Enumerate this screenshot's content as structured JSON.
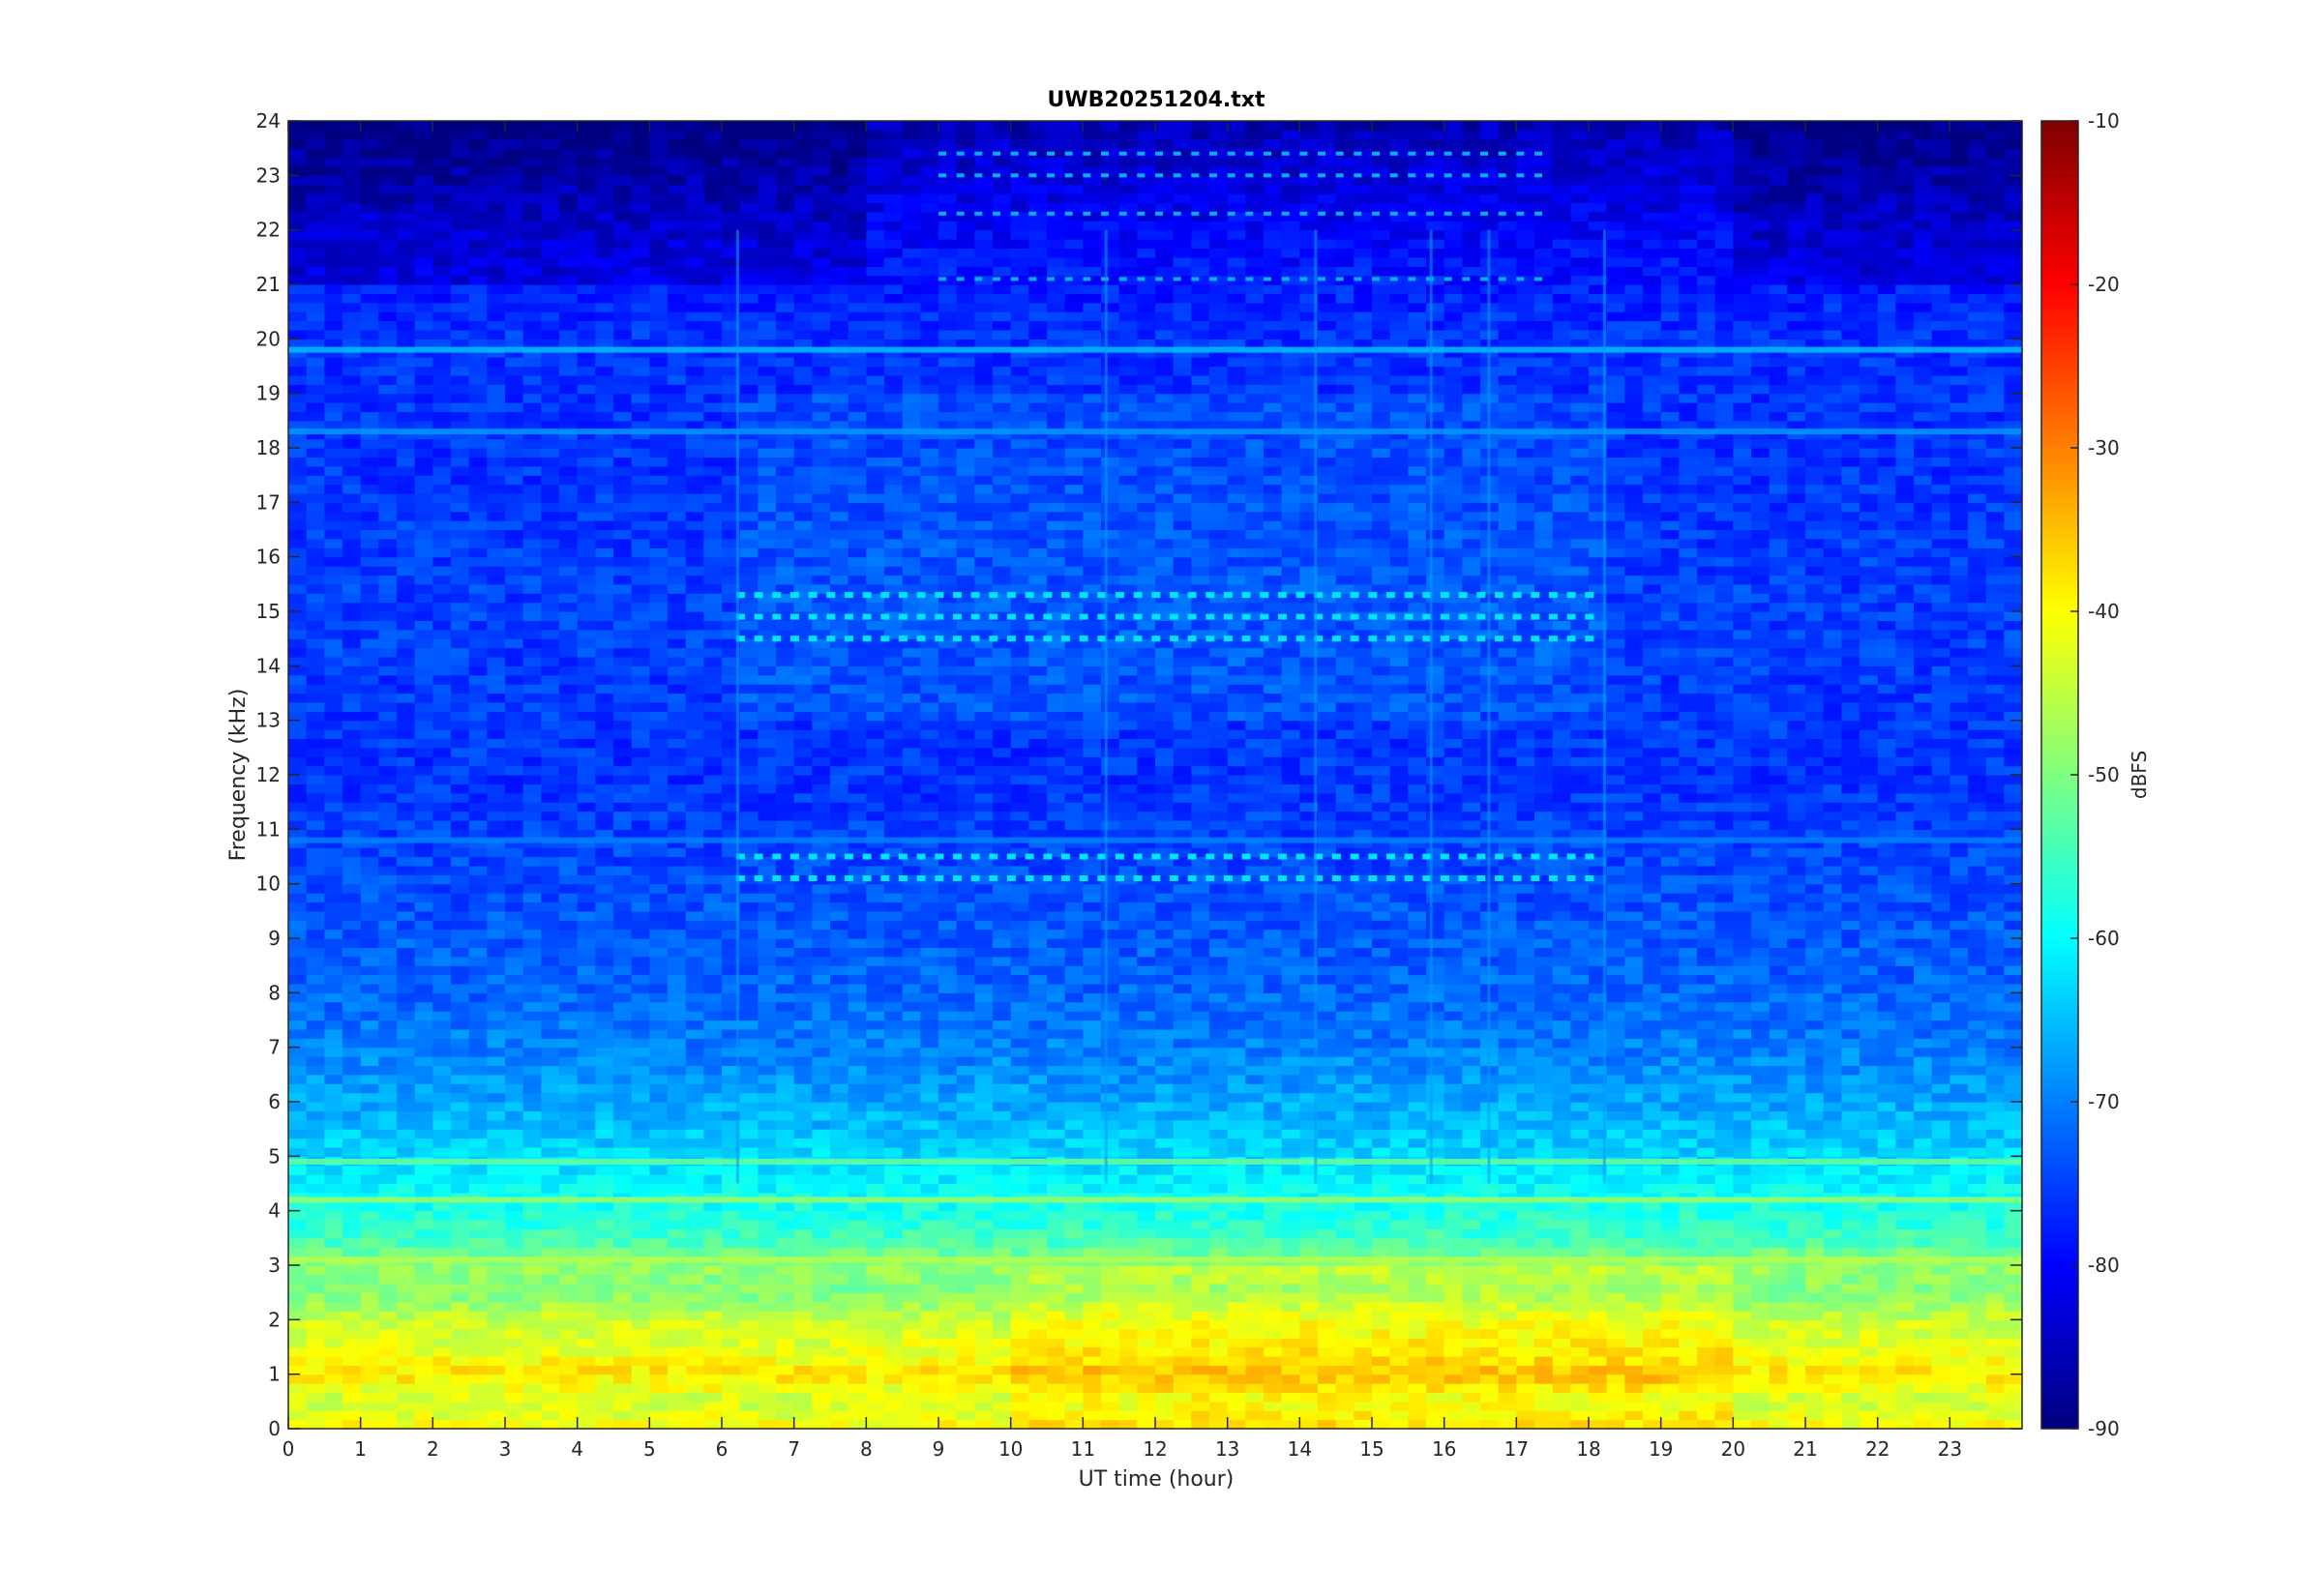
{
  "chart_data": {
    "type": "heatmap",
    "title": "UWB20251204.txt",
    "xlabel": "UT time (hour)",
    "ylabel": "Frequency (kHz)",
    "xlim": [
      0,
      24
    ],
    "ylim": [
      0,
      24
    ],
    "x_ticks": [
      "0",
      "1",
      "2",
      "3",
      "4",
      "5",
      "6",
      "7",
      "8",
      "9",
      "10",
      "11",
      "12",
      "13",
      "14",
      "15",
      "16",
      "17",
      "18",
      "19",
      "20",
      "21",
      "22",
      "23"
    ],
    "y_ticks": [
      "0",
      "1",
      "2",
      "3",
      "4",
      "5",
      "6",
      "7",
      "8",
      "9",
      "10",
      "11",
      "12",
      "13",
      "14",
      "15",
      "16",
      "17",
      "18",
      "19",
      "20",
      "21",
      "22",
      "23",
      "24"
    ],
    "colorbar": {
      "label": "dBFS",
      "colormap": "jet",
      "range": [
        -90,
        -10
      ],
      "ticks": [
        "-10",
        "-20",
        "-30",
        "-40",
        "-50",
        "-60",
        "-70",
        "-80",
        "-90"
      ]
    },
    "spectral_profile": {
      "frequency_khz": [
        0,
        0.5,
        1,
        1.5,
        2,
        2.5,
        3,
        3.5,
        4,
        5,
        6,
        7,
        8,
        9,
        10,
        12,
        15,
        18,
        20,
        22,
        24
      ],
      "level_dbfs": [
        -40,
        -44,
        -38,
        -42,
        -44,
        -50,
        -48,
        -55,
        -58,
        -63,
        -67,
        -70,
        -72,
        -73,
        -74,
        -76,
        -75,
        -76,
        -76,
        -80,
        -86
      ]
    },
    "persistent_bands_khz": [
      {
        "freq": 18.3,
        "level_dbfs": -68
      },
      {
        "freq": 19.8,
        "level_dbfs": -65
      },
      {
        "freq": 10.8,
        "level_dbfs": -70
      },
      {
        "freq": 4.9,
        "level_dbfs": -52
      },
      {
        "freq": 4.2,
        "level_dbfs": -48
      },
      {
        "freq": 3.1,
        "level_dbfs": -46
      }
    ],
    "pulsed_band_hours": [
      6.2,
      18.2
    ],
    "pulsed_band_freqs_khz": [
      15.3,
      14.9,
      14.5,
      10.5,
      10.1
    ],
    "line_freqs_khz": [
      22.3,
      23.0,
      23.4,
      21.1
    ]
  },
  "colors": {
    "jet": [
      "#00007f",
      "#0000ff",
      "#007fff",
      "#00ffff",
      "#7fff7f",
      "#ffff00",
      "#ff7f00",
      "#ff0000",
      "#7f0000"
    ],
    "axis": "#262626"
  }
}
